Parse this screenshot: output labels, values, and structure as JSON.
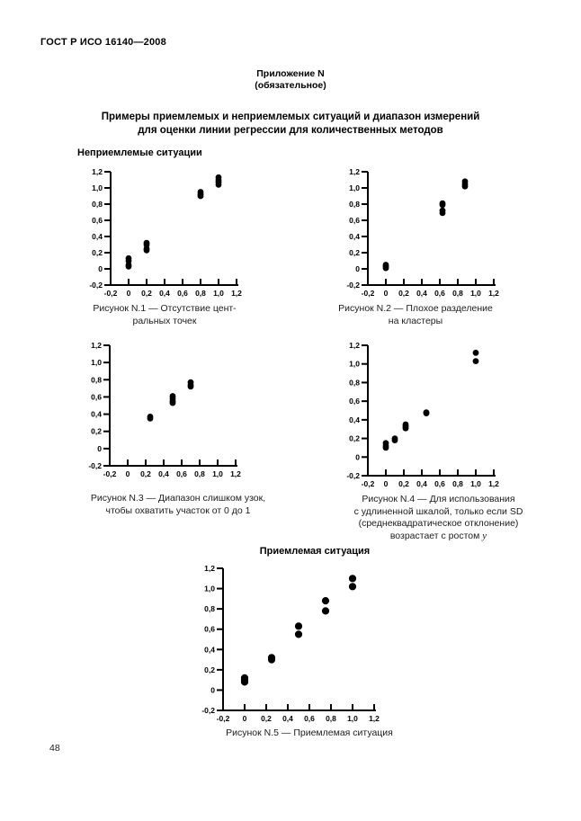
{
  "page": {
    "doc_number": "ГОСТ Р ИСО 16140—2008",
    "annex": {
      "line1": "Приложение N",
      "line2": "(обязательное)"
    },
    "title_line1": "Примеры приемлемых и неприемлемых ситуаций и диапазон измерений",
    "title_line2": "для оценки линии регрессии для количественных методов",
    "section_unacceptable": "Неприемлемые ситуации",
    "section_acceptable": "Приемлемая ситуация",
    "page_number": "48"
  },
  "axis": {
    "min": -0.2,
    "max": 1.2,
    "tick_values": [
      -0.2,
      0,
      0.2,
      0.4,
      0.6,
      0.8,
      1.0,
      1.2
    ],
    "tick_labels": [
      "-0,2",
      "0",
      "0,2",
      "0,4",
      "0,6",
      "0,8",
      "1,0",
      "1,2"
    ],
    "grid": false,
    "xlabel": "",
    "ylabel": ""
  },
  "chart_data": [
    {
      "type": "scatter",
      "figure": "N.1",
      "caption_lines": [
        "Рисунок N.1 — Отсутствие цент-",
        "ральных точек"
      ],
      "xlim": [
        -0.2,
        1.2
      ],
      "ylim": [
        -0.2,
        1.2
      ],
      "points": [
        [
          0,
          0.03
        ],
        [
          0,
          0.05
        ],
        [
          0,
          0.1
        ],
        [
          0,
          0.13
        ],
        [
          0.2,
          0.23
        ],
        [
          0.2,
          0.25
        ],
        [
          0.2,
          0.3
        ],
        [
          0.2,
          0.32
        ],
        [
          0.8,
          0.9
        ],
        [
          0.8,
          0.92
        ],
        [
          0.8,
          0.95
        ],
        [
          1.0,
          1.04
        ],
        [
          1.0,
          1.07
        ],
        [
          1.0,
          1.1
        ],
        [
          1.0,
          1.13
        ]
      ]
    },
    {
      "type": "scatter",
      "figure": "N.2",
      "caption_lines": [
        "Рисунок N.2 — Плохое разделение",
        "на кластеры"
      ],
      "xlim": [
        -0.2,
        1.2
      ],
      "ylim": [
        -0.2,
        1.2
      ],
      "points": [
        [
          0,
          0.01
        ],
        [
          0,
          0.03
        ],
        [
          0,
          0.05
        ],
        [
          0.63,
          0.69
        ],
        [
          0.63,
          0.72
        ],
        [
          0.63,
          0.79
        ],
        [
          0.63,
          0.81
        ],
        [
          0.88,
          1.02
        ],
        [
          0.88,
          1.05
        ],
        [
          0.88,
          1.08
        ]
      ]
    },
    {
      "type": "scatter",
      "figure": "N.3",
      "caption_lines": [
        "Рисунок N.3 — Диапазон слишком узок,",
        "чтобы охватить участок от 0 до 1"
      ],
      "xlim": [
        -0.2,
        1.2
      ],
      "ylim": [
        -0.2,
        1.2
      ],
      "points": [
        [
          0.25,
          0.35
        ],
        [
          0.25,
          0.37
        ],
        [
          0.5,
          0.53
        ],
        [
          0.5,
          0.55
        ],
        [
          0.5,
          0.58
        ],
        [
          0.5,
          0.61
        ],
        [
          0.7,
          0.72
        ],
        [
          0.7,
          0.74
        ],
        [
          0.7,
          0.77
        ]
      ]
    },
    {
      "type": "scatter",
      "figure": "N.4",
      "caption_lines": [
        "Рисунок N.4 — Для использования",
        "с удлиненной шкалой, только если SD",
        "(среднеквадратическое отклонение)"
      ],
      "caption_tail": "возрастает с ростом ",
      "caption_tail_italic": "y",
      "xlim": [
        -0.2,
        1.2
      ],
      "ylim": [
        -0.2,
        1.2
      ],
      "points": [
        [
          0,
          0.1
        ],
        [
          0,
          0.12
        ],
        [
          0,
          0.15
        ],
        [
          0.1,
          0.18
        ],
        [
          0.1,
          0.2
        ],
        [
          0.22,
          0.31
        ],
        [
          0.22,
          0.33
        ],
        [
          0.22,
          0.35
        ],
        [
          0.45,
          0.47
        ],
        [
          0.45,
          0.48
        ],
        [
          1.0,
          1.03
        ],
        [
          1.0,
          1.12
        ]
      ]
    },
    {
      "type": "scatter",
      "figure": "N.5",
      "caption_lines": [
        "Рисунок N.5 — Приемлемая ситуация"
      ],
      "xlim": [
        -0.2,
        1.2
      ],
      "ylim": [
        -0.2,
        1.2
      ],
      "points": [
        [
          0,
          0.08
        ],
        [
          0,
          0.1
        ],
        [
          0,
          0.12
        ],
        [
          0.25,
          0.3
        ],
        [
          0.25,
          0.32
        ],
        [
          0.5,
          0.55
        ],
        [
          0.5,
          0.63
        ],
        [
          0.75,
          0.78
        ],
        [
          0.75,
          0.88
        ],
        [
          1.0,
          1.02
        ],
        [
          1.0,
          1.1
        ]
      ]
    }
  ]
}
